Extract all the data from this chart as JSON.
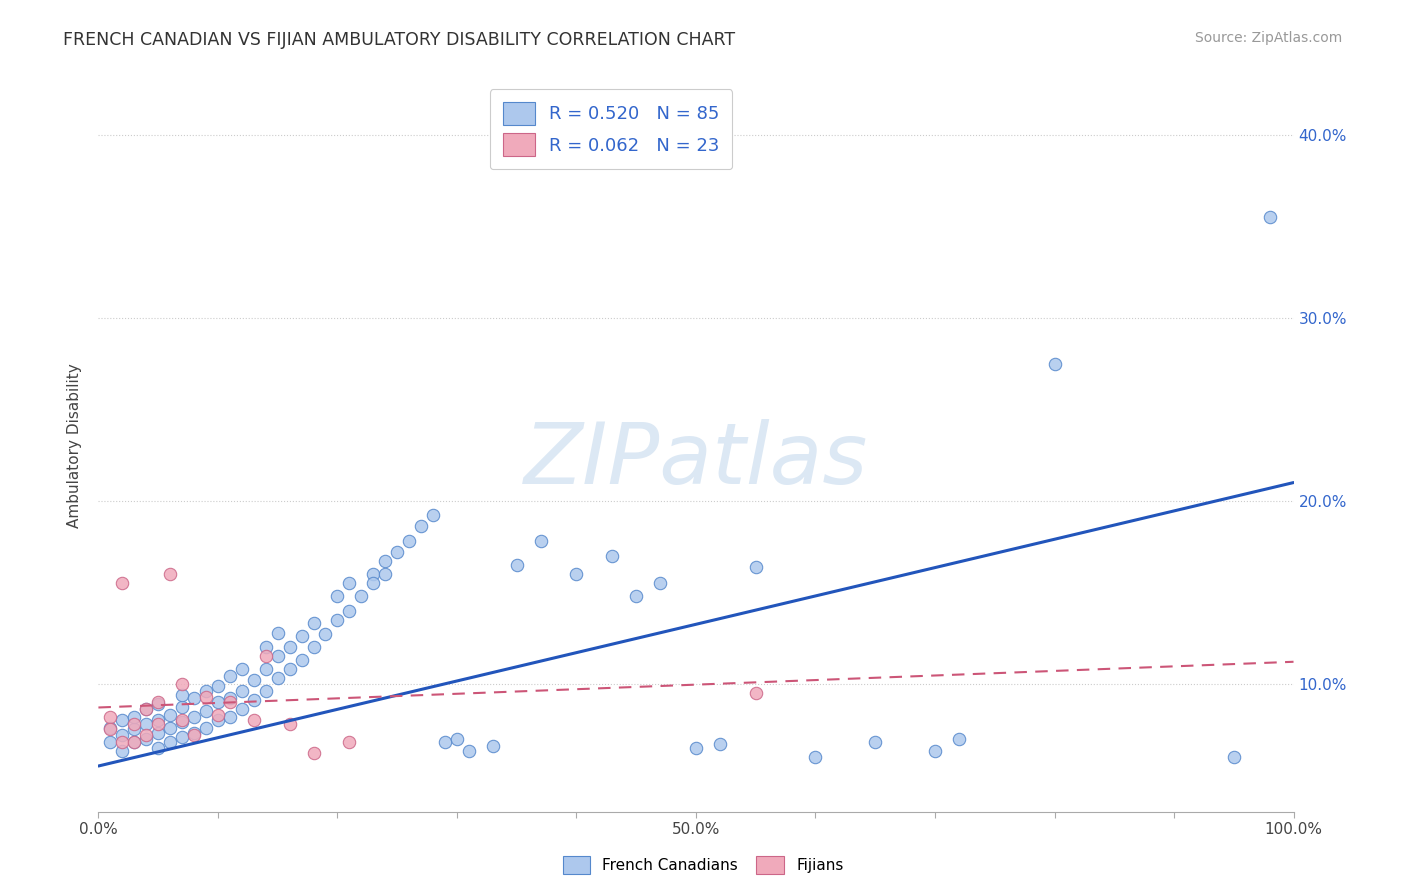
{
  "title": "FRENCH CANADIAN VS FIJIAN AMBULATORY DISABILITY CORRELATION CHART",
  "source_text": "Source: ZipAtlas.com",
  "ylabel": "Ambulatory Disability",
  "xlim": [
    0.0,
    1.0
  ],
  "ylim": [
    0.03,
    0.43
  ],
  "ytick_vals": [
    0.1,
    0.2,
    0.3,
    0.4
  ],
  "ytick_labels": [
    "10.0%",
    "20.0%",
    "30.0%",
    "40.0%"
  ],
  "xtick_vals": [
    0.0,
    0.1,
    0.2,
    0.3,
    0.4,
    0.5,
    0.6,
    0.7,
    0.8,
    0.9,
    1.0
  ],
  "xtick_labels": [
    "0.0%",
    "",
    "",
    "",
    "",
    "50.0%",
    "",
    "",
    "",
    "",
    "100.0%"
  ],
  "french_canadian_R": 0.52,
  "french_canadian_N": 85,
  "fijian_R": 0.062,
  "fijian_N": 23,
  "fc_fill": "#adc8ed",
  "fc_edge": "#5588cc",
  "fj_fill": "#f0aabb",
  "fj_edge": "#cc6688",
  "fc_line_color": "#2255bb",
  "fj_line_color": "#cc5577",
  "watermark_text": "ZIPatlas",
  "watermark_color": "#dce8f4",
  "background_color": "#ffffff",
  "title_color": "#333333",
  "source_color": "#999999",
  "legend_text_color": "#3366cc",
  "ylabel_color": "#444444",
  "ytick_color": "#3366cc",
  "xtick_color": "#444444",
  "grid_color": "#cccccc",
  "fc_line_intercept": 0.055,
  "fc_line_slope": 0.155,
  "fj_line_intercept": 0.087,
  "fj_line_slope": 0.025,
  "fc_x": [
    0.01,
    0.01,
    0.02,
    0.02,
    0.02,
    0.03,
    0.03,
    0.03,
    0.04,
    0.04,
    0.04,
    0.05,
    0.05,
    0.05,
    0.05,
    0.06,
    0.06,
    0.06,
    0.07,
    0.07,
    0.07,
    0.07,
    0.08,
    0.08,
    0.08,
    0.09,
    0.09,
    0.09,
    0.1,
    0.1,
    0.1,
    0.11,
    0.11,
    0.11,
    0.12,
    0.12,
    0.12,
    0.13,
    0.13,
    0.14,
    0.14,
    0.14,
    0.15,
    0.15,
    0.15,
    0.16,
    0.16,
    0.17,
    0.17,
    0.18,
    0.18,
    0.19,
    0.2,
    0.2,
    0.21,
    0.21,
    0.22,
    0.23,
    0.23,
    0.24,
    0.24,
    0.25,
    0.26,
    0.27,
    0.28,
    0.29,
    0.3,
    0.31,
    0.33,
    0.35,
    0.37,
    0.4,
    0.43,
    0.45,
    0.47,
    0.5,
    0.52,
    0.55,
    0.6,
    0.65,
    0.7,
    0.72,
    0.8,
    0.95,
    0.98
  ],
  "fc_y": [
    0.076,
    0.068,
    0.072,
    0.08,
    0.063,
    0.068,
    0.075,
    0.082,
    0.07,
    0.078,
    0.086,
    0.065,
    0.073,
    0.08,
    0.089,
    0.068,
    0.076,
    0.083,
    0.071,
    0.079,
    0.087,
    0.094,
    0.073,
    0.082,
    0.092,
    0.076,
    0.085,
    0.096,
    0.08,
    0.09,
    0.099,
    0.082,
    0.092,
    0.104,
    0.086,
    0.096,
    0.108,
    0.091,
    0.102,
    0.096,
    0.108,
    0.12,
    0.103,
    0.115,
    0.128,
    0.108,
    0.12,
    0.113,
    0.126,
    0.12,
    0.133,
    0.127,
    0.135,
    0.148,
    0.14,
    0.155,
    0.148,
    0.16,
    0.155,
    0.167,
    0.16,
    0.172,
    0.178,
    0.186,
    0.192,
    0.068,
    0.07,
    0.063,
    0.066,
    0.165,
    0.178,
    0.16,
    0.17,
    0.148,
    0.155,
    0.065,
    0.067,
    0.164,
    0.06,
    0.068,
    0.063,
    0.07,
    0.275,
    0.06,
    0.355
  ],
  "fj_x": [
    0.01,
    0.01,
    0.02,
    0.02,
    0.03,
    0.03,
    0.04,
    0.04,
    0.05,
    0.05,
    0.06,
    0.07,
    0.07,
    0.08,
    0.09,
    0.1,
    0.11,
    0.13,
    0.14,
    0.16,
    0.18,
    0.21,
    0.55
  ],
  "fj_y": [
    0.082,
    0.075,
    0.155,
    0.068,
    0.078,
    0.068,
    0.086,
    0.072,
    0.078,
    0.09,
    0.16,
    0.1,
    0.08,
    0.072,
    0.093,
    0.083,
    0.09,
    0.08,
    0.115,
    0.078,
    0.062,
    0.068,
    0.095
  ]
}
